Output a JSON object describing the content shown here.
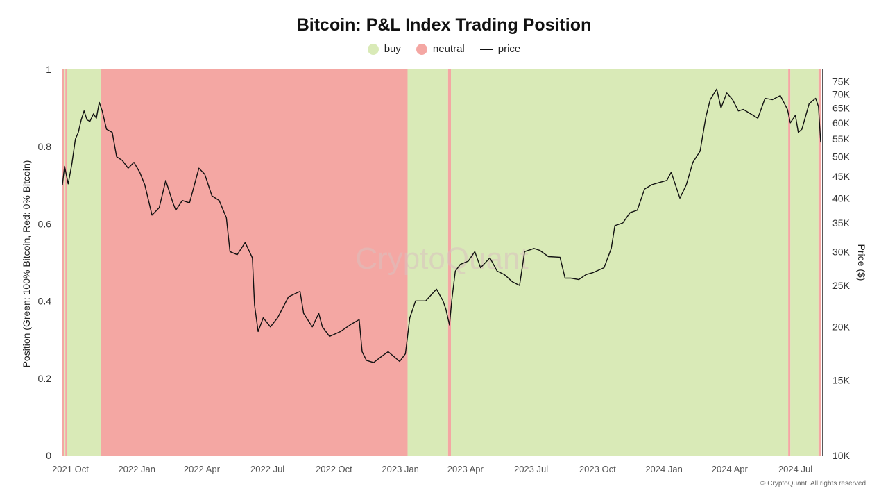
{
  "chart_data": {
    "type": "area",
    "title": "Bitcoin: P&L Index Trading Position",
    "legend": [
      {
        "name": "buy",
        "color": "#d9eab7"
      },
      {
        "name": "neutral",
        "color": "#f4a7a3"
      },
      {
        "name": "price",
        "color": "#111111"
      }
    ],
    "legend_placement": "top-center",
    "ylabel_left": "Position (Green: 100% Bitcoin, Red: 0% Bitcoin)",
    "ylabel_right": "Price ($)",
    "ylim_left": [
      0,
      1
    ],
    "left_ticks": [
      "0",
      "0.2",
      "0.4",
      "0.6",
      "0.8",
      "1"
    ],
    "right_ticks": [
      "10K",
      "15K",
      "20K",
      "25K",
      "30K",
      "35K",
      "40K",
      "45K",
      "50K",
      "55K",
      "60K",
      "65K",
      "70K",
      "75K"
    ],
    "right_tick_values": [
      10000,
      15000,
      20000,
      25000,
      30000,
      35000,
      40000,
      45000,
      50000,
      55000,
      60000,
      65000,
      70000,
      75000
    ],
    "right_scale": "log",
    "ylim_right": [
      10000,
      80000
    ],
    "x_ticks": [
      "2021 Oct",
      "2022 Jan",
      "2022 Apr",
      "2022 Jul",
      "2022 Oct",
      "2023 Jan",
      "2023 Apr",
      "2023 Jul",
      "2023 Oct",
      "2024 Jan",
      "2024 Apr",
      "2024 Jul"
    ],
    "x_tick_dates": [
      "2021-10-01",
      "2022-01-01",
      "2022-04-01",
      "2022-07-01",
      "2022-10-01",
      "2023-01-01",
      "2023-04-01",
      "2023-07-01",
      "2023-10-01",
      "2024-01-01",
      "2024-04-01",
      "2024-07-01"
    ],
    "x_range": [
      "2021-09-20",
      "2024-08-06"
    ],
    "position_regimes": [
      {
        "start": "2021-09-20",
        "end": "2021-09-22",
        "position": "neutral"
      },
      {
        "start": "2021-09-22",
        "end": "2021-09-24",
        "position": "buy"
      },
      {
        "start": "2021-09-24",
        "end": "2021-09-26",
        "position": "neutral"
      },
      {
        "start": "2021-09-26",
        "end": "2021-11-12",
        "position": "buy"
      },
      {
        "start": "2021-11-12",
        "end": "2023-01-11",
        "position": "neutral"
      },
      {
        "start": "2023-01-11",
        "end": "2023-03-08",
        "position": "buy"
      },
      {
        "start": "2023-03-08",
        "end": "2023-03-12",
        "position": "neutral"
      },
      {
        "start": "2023-03-12",
        "end": "2024-06-21",
        "position": "buy"
      },
      {
        "start": "2024-06-21",
        "end": "2024-06-24",
        "position": "neutral"
      },
      {
        "start": "2024-06-24",
        "end": "2024-08-02",
        "position": "buy"
      },
      {
        "start": "2024-08-02",
        "end": "2024-08-06",
        "position": "neutral"
      }
    ],
    "price_series": {
      "name": "price",
      "x": [
        "2021-09-20",
        "2021-09-23",
        "2021-09-28",
        "2021-10-03",
        "2021-10-08",
        "2021-10-12",
        "2021-10-16",
        "2021-10-20",
        "2021-10-24",
        "2021-10-28",
        "2021-11-02",
        "2021-11-06",
        "2021-11-10",
        "2021-11-14",
        "2021-11-20",
        "2021-11-28",
        "2021-12-04",
        "2021-12-12",
        "2021-12-20",
        "2021-12-28",
        "2022-01-05",
        "2022-01-12",
        "2022-01-22",
        "2022-02-01",
        "2022-02-10",
        "2022-02-20",
        "2022-02-24",
        "2022-03-05",
        "2022-03-15",
        "2022-03-28",
        "2022-04-05",
        "2022-04-15",
        "2022-04-25",
        "2022-05-05",
        "2022-05-10",
        "2022-05-20",
        "2022-05-31",
        "2022-06-10",
        "2022-06-13",
        "2022-06-18",
        "2022-06-25",
        "2022-07-05",
        "2022-07-15",
        "2022-07-30",
        "2022-08-10",
        "2022-08-15",
        "2022-08-20",
        "2022-09-01",
        "2022-09-10",
        "2022-09-15",
        "2022-09-25",
        "2022-10-10",
        "2022-10-25",
        "2022-11-05",
        "2022-11-09",
        "2022-11-15",
        "2022-11-25",
        "2022-12-05",
        "2022-12-15",
        "2022-12-31",
        "2023-01-08",
        "2023-01-14",
        "2023-01-22",
        "2023-02-05",
        "2023-02-15",
        "2023-02-20",
        "2023-03-01",
        "2023-03-05",
        "2023-03-10",
        "2023-03-13",
        "2023-03-18",
        "2023-03-25",
        "2023-04-05",
        "2023-04-14",
        "2023-04-22",
        "2023-05-05",
        "2023-05-15",
        "2023-05-25",
        "2023-06-05",
        "2023-06-15",
        "2023-06-22",
        "2023-07-05",
        "2023-07-13",
        "2023-07-25",
        "2023-08-10",
        "2023-08-17",
        "2023-08-25",
        "2023-09-05",
        "2023-09-15",
        "2023-09-25",
        "2023-10-10",
        "2023-10-20",
        "2023-10-25",
        "2023-11-05",
        "2023-11-15",
        "2023-11-25",
        "2023-12-05",
        "2023-12-15",
        "2023-12-25",
        "2024-01-05",
        "2024-01-11",
        "2024-01-23",
        "2024-02-01",
        "2024-02-10",
        "2024-02-20",
        "2024-02-28",
        "2024-03-05",
        "2024-03-14",
        "2024-03-20",
        "2024-03-28",
        "2024-04-05",
        "2024-04-13",
        "2024-04-20",
        "2024-04-30",
        "2024-05-10",
        "2024-05-20",
        "2024-05-30",
        "2024-06-10",
        "2024-06-20",
        "2024-06-24",
        "2024-07-01",
        "2024-07-05",
        "2024-07-10",
        "2024-07-20",
        "2024-07-29",
        "2024-08-02",
        "2024-08-05"
      ],
      "y": [
        43000,
        47500,
        43200,
        48000,
        55000,
        57000,
        61000,
        64000,
        61000,
        60500,
        63000,
        61500,
        67000,
        64000,
        58000,
        57000,
        50000,
        49000,
        47000,
        48500,
        46000,
        43000,
        36500,
        38000,
        44000,
        39000,
        37500,
        39500,
        39000,
        47000,
        45500,
        40500,
        39500,
        36000,
        30000,
        29500,
        31500,
        29000,
        22500,
        19500,
        21000,
        20000,
        21000,
        23500,
        24000,
        24200,
        21500,
        20000,
        21500,
        20000,
        19000,
        19500,
        20300,
        20800,
        17500,
        16700,
        16500,
        17000,
        17500,
        16600,
        17300,
        21000,
        23000,
        23000,
        24000,
        24500,
        23000,
        22000,
        20200,
        23000,
        27000,
        28000,
        28500,
        30000,
        27500,
        29000,
        27000,
        26500,
        25500,
        25000,
        30000,
        30500,
        30200,
        29200,
        29100,
        26000,
        26000,
        25800,
        26500,
        26800,
        27500,
        30500,
        34500,
        35000,
        37000,
        37500,
        42000,
        43000,
        43500,
        44000,
        46000,
        40000,
        43000,
        48500,
        51500,
        62000,
        68000,
        72000,
        65000,
        70500,
        68000,
        64000,
        64500,
        63000,
        61500,
        68500,
        68000,
        69500,
        64500,
        60000,
        62500,
        57000,
        58000,
        66500,
        68500,
        65500,
        54000
      ]
    }
  },
  "watermark": "CryptoQuant",
  "copyright": "© CryptoQuant. All rights reserved"
}
